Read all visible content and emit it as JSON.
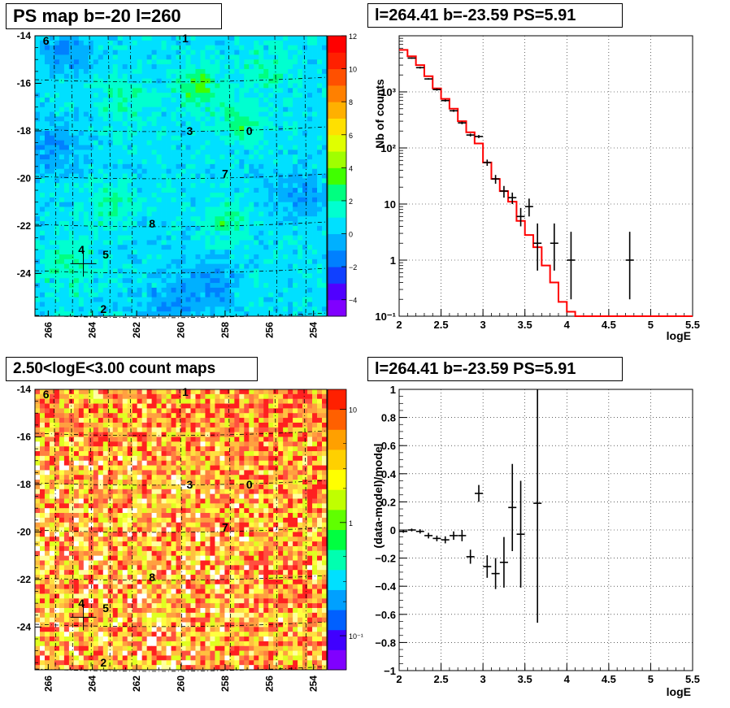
{
  "panels": {
    "ps_map": {
      "title": "PS map b=-20 l=260",
      "colorbar_ticks": [
        "12",
        "10",
        "8",
        "6",
        "4",
        "2",
        "0",
        "−2",
        "−4"
      ]
    },
    "spectrum": {
      "title": "l=264.41 b=-23.59 PS=5.91"
    },
    "count_map": {
      "title": "2.50<logE<3.00 count maps",
      "colorbar_ticks": [
        "10",
        "1",
        "10⁻¹"
      ]
    },
    "residual": {
      "title": "l=264.41 b=-23.59 PS=5.91"
    }
  },
  "sky_map_axes": {
    "x_ticks": [
      "266",
      "264",
      "262",
      "260",
      "258",
      "256",
      "254"
    ],
    "y_ticks": [
      "-14",
      "-16",
      "-18",
      "-20",
      "-22",
      "-24"
    ]
  },
  "source_labels": [
    {
      "label": "0",
      "l": 256.9,
      "b": -18.0
    },
    {
      "label": "1",
      "l": 259.8,
      "b": -14.1
    },
    {
      "label": "2",
      "l": 263.5,
      "b": -25.5
    },
    {
      "label": "3",
      "l": 259.6,
      "b": -18.0
    },
    {
      "label": "4",
      "l": 264.5,
      "b": -23.0
    },
    {
      "label": "5",
      "l": 263.4,
      "b": -23.2
    },
    {
      "label": "6",
      "l": 266.1,
      "b": -14.2
    },
    {
      "label": "7",
      "l": 258.0,
      "b": -19.8
    },
    {
      "label": "8",
      "l": 261.3,
      "b": -21.9
    }
  ],
  "chart_data": [
    {
      "type": "heatmap",
      "title": "PS map b=-20 l=260",
      "xlabel": "",
      "ylabel": "",
      "xlim": [
        266.6,
        253.4
      ],
      "ylim": [
        -25.8,
        -14
      ],
      "zlim": [
        -5,
        12
      ],
      "colorbar_ticks": [
        -4,
        -2,
        0,
        2,
        4,
        6,
        8,
        10,
        12
      ],
      "grid": true,
      "marker": {
        "l": 264.41,
        "b": -23.59
      }
    },
    {
      "type": "line",
      "title": "l=264.41 b=-23.59 PS=5.91",
      "xlabel": "logE",
      "ylabel": "Nb of counts",
      "xlim": [
        2,
        5.5
      ],
      "ylim": [
        0.1,
        10000
      ],
      "yscale": "log",
      "grid": true,
      "x_ticks": [
        "2",
        "2.5",
        "3",
        "3.5",
        "4",
        "4.5",
        "5",
        "5.5"
      ],
      "y_ticks": [
        "10⁻¹",
        "1",
        "10",
        "10²",
        "10³"
      ],
      "series": [
        {
          "kind": "step",
          "color": "#ff0000",
          "edges": [
            2.0,
            2.1,
            2.2,
            2.3,
            2.4,
            2.5,
            2.6,
            2.7,
            2.8,
            2.9,
            3.0,
            3.1,
            3.2,
            3.3,
            3.4,
            3.5,
            3.6,
            3.7,
            3.8,
            3.9,
            4.0,
            4.1,
            5.5
          ],
          "values": [
            5600,
            4300,
            3000,
            1900,
            1150,
            750,
            500,
            300,
            190,
            120,
            55,
            28,
            17,
            11,
            5,
            2.8,
            1.7,
            0.8,
            0.4,
            0.18,
            0.12,
            0.1
          ]
        },
        {
          "kind": "errorbar",
          "color": "#000000",
          "x": [
            2.15,
            2.25,
            2.35,
            2.45,
            2.55,
            2.65,
            2.75,
            2.85,
            2.95,
            3.05,
            3.15,
            3.25,
            3.35,
            3.45,
            3.55,
            3.65,
            3.85,
            4.05,
            4.75
          ],
          "y": [
            4000,
            2700,
            1700,
            1100,
            700,
            460,
            280,
            170,
            160,
            55,
            28,
            17,
            13,
            6,
            9,
            2,
            2,
            1,
            1
          ],
          "ylo": [
            3900,
            2600,
            1650,
            1050,
            670,
            440,
            265,
            160,
            150,
            48,
            23,
            13,
            10,
            4,
            6,
            0.65,
            0.65,
            0.2,
            0.2
          ],
          "yhi": [
            4100,
            2800,
            1750,
            1150,
            730,
            480,
            295,
            180,
            170,
            62,
            33,
            21,
            16,
            8.5,
            12.5,
            4.5,
            4.5,
            3.2,
            3.2
          ]
        }
      ]
    },
    {
      "type": "heatmap",
      "title": "2.50<logE<3.00 count maps",
      "xlabel": "",
      "ylabel": "",
      "xlim": [
        266.6,
        253.4
      ],
      "ylim": [
        -25.8,
        -14
      ],
      "zlim": [
        0.05,
        15
      ],
      "zscale": "log",
      "colorbar_ticks": [
        0.1,
        1,
        10
      ],
      "grid": true,
      "marker": {
        "l": 264.41,
        "b": -23.59
      }
    },
    {
      "type": "scatter",
      "title": "l=264.41 b=-23.59 PS=5.91",
      "xlabel": "logE",
      "ylabel": "(data-model)/model",
      "xlim": [
        2,
        5.5
      ],
      "ylim": [
        -1,
        1
      ],
      "grid": true,
      "x_ticks": [
        "2",
        "2.5",
        "3",
        "3.5",
        "4",
        "4.5",
        "5",
        "5.5"
      ],
      "y_ticks": [
        "−1",
        "−0.8",
        "−0.6",
        "−0.4",
        "−0.2",
        "0",
        "0.2",
        "0.4",
        "0.6",
        "0.8",
        "1"
      ],
      "series": [
        {
          "kind": "errorbar",
          "x": [
            2.05,
            2.15,
            2.25,
            2.35,
            2.45,
            2.55,
            2.65,
            2.75,
            2.85,
            2.95,
            3.05,
            3.15,
            3.25,
            3.35,
            3.45,
            3.65
          ],
          "y": [
            -0.01,
            0.0,
            -0.01,
            -0.04,
            -0.06,
            -0.07,
            -0.04,
            -0.04,
            -0.19,
            0.26,
            -0.26,
            -0.31,
            -0.23,
            0.16,
            -0.03,
            0.19
          ],
          "err": [
            0.01,
            0.01,
            0.015,
            0.02,
            0.02,
            0.025,
            0.03,
            0.04,
            0.05,
            0.06,
            0.08,
            0.11,
            0.18,
            0.31,
            0.38,
            0.85
          ]
        }
      ]
    }
  ]
}
